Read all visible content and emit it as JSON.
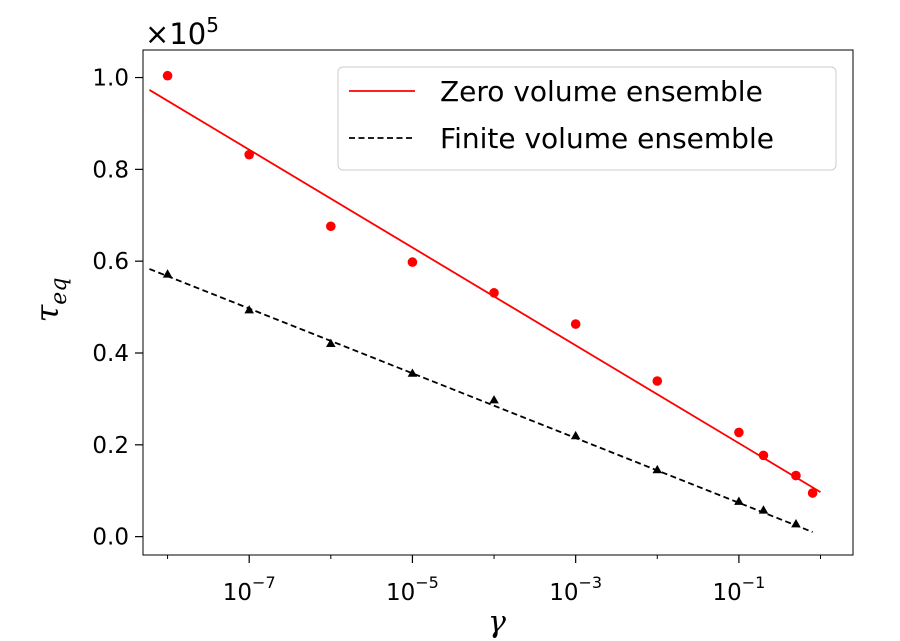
{
  "chart_data": {
    "type": "scatter",
    "xscale": "log",
    "xlim": [
      5e-09,
      2.5
    ],
    "ylim": [
      -0.04,
      1.06
    ],
    "xlabel": "γ",
    "ylabel": "τeq",
    "y_multiplier": {
      "base": "×10",
      "exp": "5"
    },
    "x_ticks": [
      {
        "value": 1e-07,
        "base": "10",
        "exp": "−7"
      },
      {
        "value": 1e-05,
        "base": "10",
        "exp": "−5"
      },
      {
        "value": 0.001,
        "base": "10",
        "exp": "−3"
      },
      {
        "value": 0.1,
        "base": "10",
        "exp": "−1"
      }
    ],
    "y_ticks": [
      {
        "value": 0.0,
        "label": "0.0"
      },
      {
        "value": 0.2,
        "label": "0.2"
      },
      {
        "value": 0.4,
        "label": "0.4"
      },
      {
        "value": 0.6,
        "label": "0.6"
      },
      {
        "value": 0.8,
        "label": "0.8"
      },
      {
        "value": 1.0,
        "label": "1.0"
      }
    ],
    "legend_position": "top-right",
    "series": [
      {
        "name": "Zero volume ensemble",
        "kind": "fit-line",
        "color": "#ff0000",
        "dash": "solid",
        "x": [
          6e-09,
          1.0
        ],
        "y": [
          0.973,
          0.097
        ]
      },
      {
        "name": "Finite volume ensemble",
        "kind": "fit-line",
        "color": "#000000",
        "dash": "dashed",
        "x": [
          6e-09,
          0.8
        ],
        "y": [
          0.583,
          0.01
        ]
      },
      {
        "kind": "points",
        "marker": "circle",
        "color": "#ff0000",
        "x": [
          1e-08,
          1e-07,
          1e-06,
          1e-05,
          0.0001,
          0.001,
          0.01,
          0.1,
          0.2,
          0.5,
          0.8
        ],
        "y": [
          1.004,
          0.832,
          0.676,
          0.598,
          0.531,
          0.463,
          0.339,
          0.227,
          0.177,
          0.133,
          0.095
        ]
      },
      {
        "kind": "points",
        "marker": "triangle",
        "color": "#000000",
        "x": [
          1e-08,
          1e-07,
          1e-06,
          1e-05,
          0.0001,
          0.001,
          0.01,
          0.1,
          0.2,
          0.5
        ],
        "y": [
          0.571,
          0.493,
          0.42,
          0.355,
          0.297,
          0.219,
          0.145,
          0.076,
          0.057,
          0.027
        ]
      }
    ]
  }
}
